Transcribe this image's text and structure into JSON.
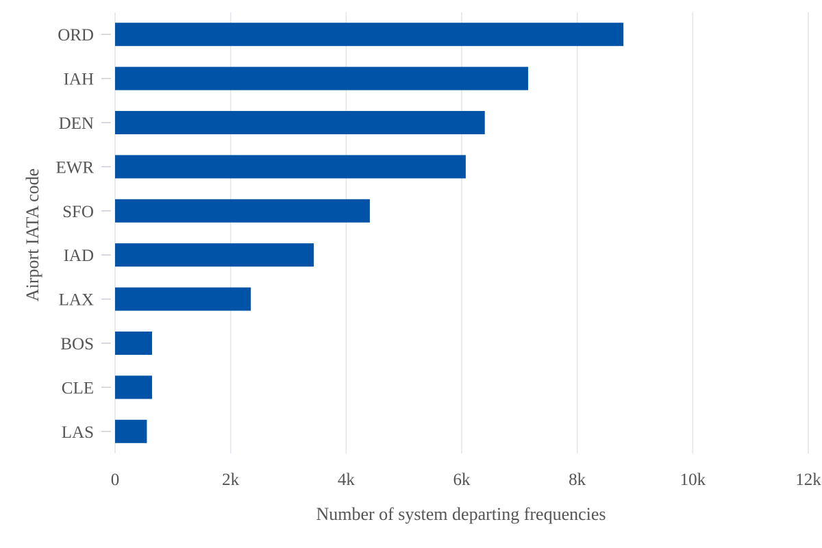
{
  "chart_data": {
    "type": "bar",
    "orientation": "horizontal",
    "categories": [
      "ORD",
      "IAH",
      "DEN",
      "EWR",
      "SFO",
      "IAD",
      "LAX",
      "BOS",
      "CLE",
      "LAS"
    ],
    "values": [
      8800,
      7150,
      6400,
      6070,
      4410,
      3440,
      2350,
      640,
      640,
      550
    ],
    "xlabel": "Number of system departing frequencies",
    "ylabel": "Airport IATA code",
    "xlim": [
      0,
      12000
    ],
    "xticks": [
      0,
      2000,
      4000,
      6000,
      8000,
      10000,
      12000
    ],
    "xtick_labels": [
      "0",
      "2k",
      "4k",
      "6k",
      "8k",
      "10k",
      "12k"
    ],
    "grid": true,
    "bar_color": "#0053a6"
  }
}
